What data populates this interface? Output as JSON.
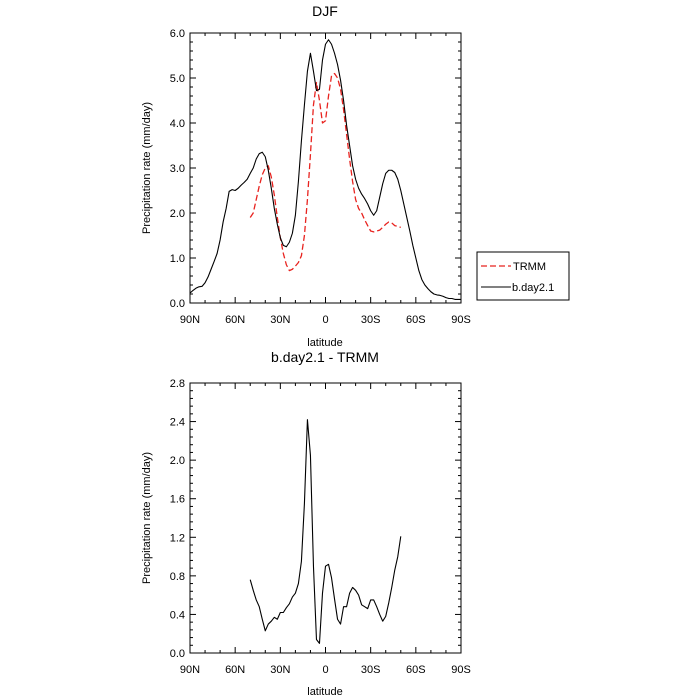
{
  "chart_data": [
    {
      "type": "line",
      "title": "DJF",
      "xlabel": "latitude",
      "ylabel": "Precipitation rate (mm/day)",
      "xlim": [
        -90,
        90
      ],
      "ylim": [
        0,
        6
      ],
      "x_ticks": [
        -90,
        -60,
        -30,
        0,
        30,
        60,
        90
      ],
      "x_ticklabels": [
        "90N",
        "60N",
        "30N",
        "0",
        "30S",
        "60S",
        "90S"
      ],
      "y_ticks": [
        0,
        1,
        2,
        3,
        4,
        5,
        6
      ],
      "y_ticklabels": [
        "0.0",
        "1.0",
        "2.0",
        "3.0",
        "4.0",
        "5.0",
        "6.0"
      ],
      "legend": {
        "placement": "right",
        "entries": [
          "TRMM",
          "b.day2.1"
        ]
      },
      "series": [
        {
          "name": "TRMM",
          "color": "#e8231f",
          "dash": "dashed",
          "x": [
            -50,
            -48,
            -46,
            -44,
            -42,
            -40,
            -38,
            -36,
            -34,
            -32,
            -30,
            -28,
            -26,
            -24,
            -22,
            -20,
            -18,
            -16,
            -14,
            -12,
            -10,
            -8,
            -6,
            -4,
            -2,
            0,
            2,
            4,
            6,
            8,
            10,
            12,
            14,
            16,
            18,
            20,
            22,
            24,
            26,
            28,
            30,
            32,
            34,
            36,
            38,
            40,
            42,
            44,
            46,
            48,
            50
          ],
          "values": [
            1.9,
            2.0,
            2.3,
            2.6,
            2.85,
            3.0,
            3.05,
            2.8,
            2.4,
            1.9,
            1.45,
            1.1,
            0.85,
            0.72,
            0.75,
            0.82,
            0.9,
            1.05,
            1.5,
            2.3,
            3.3,
            4.4,
            4.9,
            4.5,
            4.0,
            4.05,
            4.6,
            5.05,
            5.1,
            5.0,
            4.75,
            4.3,
            3.75,
            3.2,
            2.7,
            2.3,
            2.1,
            2.0,
            1.85,
            1.72,
            1.6,
            1.58,
            1.6,
            1.62,
            1.68,
            1.75,
            1.8,
            1.78,
            1.72,
            1.7,
            1.68
          ]
        },
        {
          "name": "b.day2.1",
          "color": "#000000",
          "dash": "solid",
          "x": [
            -90,
            -88,
            -86,
            -84,
            -82,
            -80,
            -78,
            -76,
            -74,
            -72,
            -70,
            -68,
            -66,
            -64,
            -62,
            -60,
            -58,
            -56,
            -54,
            -52,
            -50,
            -48,
            -46,
            -44,
            -42,
            -40,
            -38,
            -36,
            -34,
            -32,
            -30,
            -28,
            -26,
            -24,
            -22,
            -20,
            -18,
            -16,
            -14,
            -12,
            -10,
            -8,
            -6,
            -4,
            -2,
            0,
            2,
            4,
            6,
            8,
            10,
            12,
            14,
            16,
            18,
            20,
            22,
            24,
            26,
            28,
            30,
            32,
            34,
            36,
            38,
            40,
            42,
            44,
            46,
            48,
            50,
            52,
            54,
            56,
            58,
            60,
            62,
            64,
            66,
            68,
            70,
            72,
            74,
            76,
            78,
            80,
            82,
            84,
            86,
            88,
            90
          ],
          "values": [
            0.22,
            0.28,
            0.33,
            0.36,
            0.37,
            0.45,
            0.58,
            0.75,
            0.92,
            1.1,
            1.4,
            1.8,
            2.1,
            2.48,
            2.52,
            2.5,
            2.55,
            2.62,
            2.68,
            2.75,
            2.88,
            3.0,
            3.2,
            3.32,
            3.35,
            3.25,
            2.95,
            2.55,
            2.1,
            1.75,
            1.45,
            1.28,
            1.25,
            1.35,
            1.55,
            1.95,
            2.7,
            3.6,
            4.4,
            5.15,
            5.55,
            5.15,
            4.72,
            4.75,
            5.4,
            5.75,
            5.85,
            5.75,
            5.55,
            5.3,
            4.95,
            4.5,
            3.95,
            3.5,
            3.05,
            2.75,
            2.55,
            2.42,
            2.32,
            2.2,
            2.05,
            1.95,
            2.05,
            2.35,
            2.65,
            2.88,
            2.95,
            2.95,
            2.9,
            2.75,
            2.5,
            2.2,
            1.9,
            1.6,
            1.28,
            1.0,
            0.72,
            0.52,
            0.4,
            0.32,
            0.25,
            0.2,
            0.18,
            0.17,
            0.15,
            0.12,
            0.1,
            0.1,
            0.08,
            0.08,
            0.08
          ]
        }
      ]
    },
    {
      "type": "line",
      "title": "b.day2.1 - TRMM",
      "xlabel": "latitude",
      "ylabel": "Precipitation rate (mm/day)",
      "xlim": [
        -90,
        90
      ],
      "ylim": [
        0,
        2.8
      ],
      "x_ticks": [
        -90,
        -60,
        -30,
        0,
        30,
        60,
        90
      ],
      "x_ticklabels": [
        "90N",
        "60N",
        "30N",
        "0",
        "30S",
        "60S",
        "90S"
      ],
      "y_ticks": [
        0,
        0.4,
        0.8,
        1.2,
        1.6,
        2.0,
        2.4,
        2.8
      ],
      "y_ticklabels": [
        "0.0",
        "0.4",
        "0.8",
        "1.2",
        "1.6",
        "2.0",
        "2.4",
        "2.8"
      ],
      "series": [
        {
          "color": "#000000",
          "dash": "solid",
          "x": [
            -50,
            -48,
            -46,
            -44,
            -42,
            -40,
            -38,
            -36,
            -34,
            -32,
            -30,
            -28,
            -26,
            -24,
            -22,
            -20,
            -18,
            -16,
            -14,
            -12,
            -10,
            -8,
            -6,
            -4,
            -2,
            0,
            2,
            4,
            6,
            8,
            10,
            12,
            14,
            16,
            18,
            20,
            22,
            24,
            26,
            28,
            30,
            32,
            34,
            36,
            38,
            40,
            42,
            44,
            46,
            48,
            50
          ],
          "values": [
            0.76,
            0.65,
            0.55,
            0.48,
            0.35,
            0.23,
            0.3,
            0.33,
            0.37,
            0.35,
            0.42,
            0.42,
            0.47,
            0.51,
            0.58,
            0.62,
            0.72,
            0.95,
            1.55,
            2.42,
            2.05,
            0.9,
            0.14,
            0.1,
            0.62,
            0.9,
            0.92,
            0.78,
            0.56,
            0.35,
            0.3,
            0.48,
            0.48,
            0.62,
            0.68,
            0.65,
            0.6,
            0.5,
            0.48,
            0.46,
            0.55,
            0.55,
            0.48,
            0.4,
            0.33,
            0.38,
            0.52,
            0.68,
            0.86,
            1.0,
            1.21
          ]
        }
      ]
    }
  ]
}
